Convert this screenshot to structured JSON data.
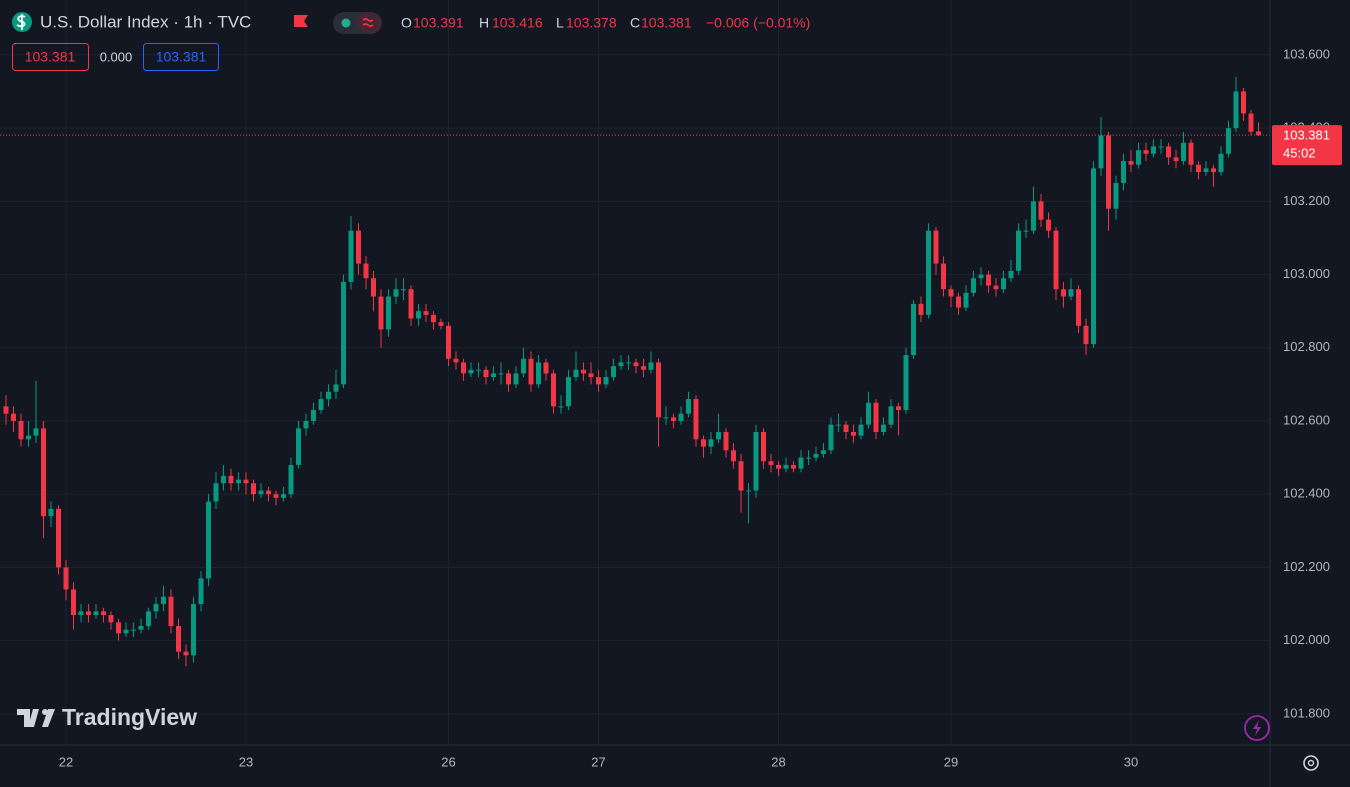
{
  "header": {
    "symbol": "U.S. Dollar Index · 1h · TVC",
    "ohlc": [
      {
        "label": "O",
        "value": "103.391"
      },
      {
        "label": "H",
        "value": "103.416"
      },
      {
        "label": "L",
        "value": "103.378"
      },
      {
        "label": "C",
        "value": "103.381"
      }
    ],
    "change": "−0.006 (−0.01%)",
    "boxes": [
      "103.381",
      "0.000",
      "103.381"
    ]
  },
  "chart_data": {
    "type": "candlestick",
    "up_color": "#089981",
    "down_color": "#f23645",
    "grid": true,
    "watermark": "TradingView",
    "last_price_label": "103.381",
    "countdown": "45:02",
    "ylim": [
      101.715,
      103.75
    ],
    "yticks": [
      {
        "value": 101.8,
        "label": "101.800"
      },
      {
        "value": 102.0,
        "label": "102.000"
      },
      {
        "value": 102.2,
        "label": "102.200"
      },
      {
        "value": 102.4,
        "label": "102.400"
      },
      {
        "value": 102.6,
        "label": "102.600"
      },
      {
        "value": 102.8,
        "label": "102.800"
      },
      {
        "value": 103.0,
        "label": "103.000"
      },
      {
        "value": 103.2,
        "label": "103.200"
      },
      {
        "value": 103.4,
        "label": "103.400"
      },
      {
        "value": 103.6,
        "label": "103.600"
      }
    ],
    "categories": [
      null,
      null,
      null,
      null,
      null,
      null,
      null,
      null,
      "22",
      null,
      null,
      null,
      null,
      null,
      null,
      null,
      null,
      null,
      null,
      null,
      null,
      null,
      null,
      null,
      null,
      null,
      null,
      null,
      null,
      null,
      null,
      null,
      "23",
      null,
      null,
      null,
      null,
      null,
      null,
      null,
      null,
      null,
      null,
      null,
      null,
      null,
      null,
      null,
      null,
      null,
      null,
      null,
      null,
      null,
      null,
      null,
      null,
      null,
      null,
      "26",
      null,
      null,
      null,
      null,
      null,
      null,
      null,
      null,
      null,
      null,
      null,
      null,
      null,
      null,
      null,
      null,
      null,
      null,
      null,
      "27",
      null,
      null,
      null,
      null,
      null,
      null,
      null,
      null,
      null,
      null,
      null,
      null,
      null,
      null,
      null,
      null,
      null,
      null,
      null,
      null,
      null,
      null,
      null,
      "28",
      null,
      null,
      null,
      null,
      null,
      null,
      null,
      null,
      null,
      null,
      null,
      null,
      null,
      null,
      null,
      null,
      null,
      null,
      null,
      null,
      null,
      null,
      "29",
      null,
      null,
      null,
      null,
      null,
      null,
      null,
      null,
      null,
      null,
      null,
      null,
      null,
      null,
      null,
      null,
      null,
      null,
      null,
      null,
      null,
      null,
      null,
      "30",
      null,
      null,
      null,
      null,
      null,
      null,
      null,
      null,
      null,
      null,
      null,
      null,
      null,
      null,
      null,
      null,
      null
    ],
    "candles": [
      [
        102.64,
        102.67,
        102.59,
        102.62
      ],
      [
        102.62,
        102.64,
        102.57,
        102.6
      ],
      [
        102.6,
        102.62,
        102.53,
        102.55
      ],
      [
        102.55,
        102.6,
        102.53,
        102.56
      ],
      [
        102.56,
        102.71,
        102.54,
        102.58
      ],
      [
        102.58,
        102.6,
        102.28,
        102.34
      ],
      [
        102.34,
        102.38,
        102.31,
        102.36
      ],
      [
        102.36,
        102.37,
        102.18,
        102.2
      ],
      [
        102.2,
        102.22,
        102.11,
        102.14
      ],
      [
        102.14,
        102.16,
        102.03,
        102.07
      ],
      [
        102.07,
        102.1,
        102.05,
        102.08
      ],
      [
        102.08,
        102.1,
        102.05,
        102.07
      ],
      [
        102.07,
        102.1,
        102.06,
        102.08
      ],
      [
        102.08,
        102.09,
        102.05,
        102.07
      ],
      [
        102.07,
        102.08,
        102.03,
        102.05
      ],
      [
        102.05,
        102.06,
        102.0,
        102.02
      ],
      [
        102.02,
        102.05,
        102.01,
        102.03
      ],
      [
        102.03,
        102.05,
        102.01,
        102.03
      ],
      [
        102.03,
        102.06,
        102.02,
        102.04
      ],
      [
        102.04,
        102.09,
        102.03,
        102.08
      ],
      [
        102.08,
        102.12,
        102.06,
        102.1
      ],
      [
        102.1,
        102.15,
        102.08,
        102.12
      ],
      [
        102.12,
        102.14,
        102.02,
        102.04
      ],
      [
        102.04,
        102.06,
        101.95,
        101.97
      ],
      [
        101.97,
        101.99,
        101.93,
        101.96
      ],
      [
        101.96,
        102.12,
        101.94,
        102.1
      ],
      [
        102.1,
        102.19,
        102.08,
        102.17
      ],
      [
        102.17,
        102.4,
        102.15,
        102.38
      ],
      [
        102.38,
        102.46,
        102.36,
        102.43
      ],
      [
        102.43,
        102.48,
        102.41,
        102.45
      ],
      [
        102.45,
        102.47,
        102.41,
        102.43
      ],
      [
        102.43,
        102.46,
        102.41,
        102.44
      ],
      [
        102.44,
        102.46,
        102.4,
        102.43
      ],
      [
        102.43,
        102.44,
        102.38,
        102.4
      ],
      [
        102.4,
        102.43,
        102.39,
        102.41
      ],
      [
        102.41,
        102.42,
        102.38,
        102.4
      ],
      [
        102.4,
        102.41,
        102.37,
        102.39
      ],
      [
        102.39,
        102.42,
        102.38,
        102.4
      ],
      [
        102.4,
        102.5,
        102.39,
        102.48
      ],
      [
        102.48,
        102.6,
        102.47,
        102.58
      ],
      [
        102.58,
        102.62,
        102.56,
        102.6
      ],
      [
        102.6,
        102.65,
        102.59,
        102.63
      ],
      [
        102.63,
        102.68,
        102.62,
        102.66
      ],
      [
        102.66,
        102.7,
        102.64,
        102.68
      ],
      [
        102.68,
        102.74,
        102.66,
        102.7
      ],
      [
        102.7,
        103.0,
        102.69,
        102.98
      ],
      [
        102.98,
        103.16,
        102.96,
        103.12
      ],
      [
        103.12,
        103.14,
        103.0,
        103.03
      ],
      [
        103.03,
        103.05,
        102.96,
        102.99
      ],
      [
        102.99,
        103.01,
        102.9,
        102.94
      ],
      [
        102.94,
        102.96,
        102.8,
        102.85
      ],
      [
        102.85,
        102.96,
        102.83,
        102.94
      ],
      [
        102.94,
        102.99,
        102.92,
        102.96
      ],
      [
        102.96,
        102.99,
        102.93,
        102.96
      ],
      [
        102.96,
        102.97,
        102.86,
        102.88
      ],
      [
        102.88,
        102.92,
        102.86,
        102.9
      ],
      [
        102.9,
        102.92,
        102.87,
        102.89
      ],
      [
        102.89,
        102.9,
        102.85,
        102.87
      ],
      [
        102.87,
        102.88,
        102.85,
        102.86
      ],
      [
        102.86,
        102.87,
        102.75,
        102.77
      ],
      [
        102.77,
        102.79,
        102.74,
        102.76
      ],
      [
        102.76,
        102.77,
        102.71,
        102.73
      ],
      [
        102.73,
        102.76,
        102.72,
        102.74
      ],
      [
        102.74,
        102.76,
        102.72,
        102.74
      ],
      [
        102.74,
        102.75,
        102.7,
        102.72
      ],
      [
        102.72,
        102.75,
        102.71,
        102.73
      ],
      [
        102.73,
        102.76,
        102.7,
        102.73
      ],
      [
        102.73,
        102.74,
        102.68,
        102.7
      ],
      [
        102.7,
        102.75,
        102.69,
        102.73
      ],
      [
        102.73,
        102.8,
        102.72,
        102.77
      ],
      [
        102.77,
        102.79,
        102.68,
        102.7
      ],
      [
        102.7,
        102.78,
        102.69,
        102.76
      ],
      [
        102.76,
        102.77,
        102.71,
        102.73
      ],
      [
        102.73,
        102.74,
        102.62,
        102.64
      ],
      [
        102.64,
        102.67,
        102.62,
        102.64
      ],
      [
        102.64,
        102.74,
        102.63,
        102.72
      ],
      [
        102.72,
        102.79,
        102.71,
        102.74
      ],
      [
        102.74,
        102.76,
        102.71,
        102.73
      ],
      [
        102.73,
        102.76,
        102.7,
        102.72
      ],
      [
        102.72,
        102.74,
        102.68,
        102.7
      ],
      [
        102.7,
        102.74,
        102.69,
        102.72
      ],
      [
        102.72,
        102.77,
        102.71,
        102.75
      ],
      [
        102.75,
        102.78,
        102.74,
        102.76
      ],
      [
        102.76,
        102.78,
        102.74,
        102.76
      ],
      [
        102.76,
        102.77,
        102.73,
        102.75
      ],
      [
        102.75,
        102.77,
        102.72,
        102.74
      ],
      [
        102.74,
        102.79,
        102.73,
        102.76
      ],
      [
        102.76,
        102.77,
        102.53,
        102.61
      ],
      [
        102.61,
        102.64,
        102.59,
        102.61
      ],
      [
        102.61,
        102.62,
        102.58,
        102.6
      ],
      [
        102.6,
        102.64,
        102.59,
        102.62
      ],
      [
        102.62,
        102.68,
        102.61,
        102.66
      ],
      [
        102.66,
        102.67,
        102.53,
        102.55
      ],
      [
        102.55,
        102.56,
        102.5,
        102.53
      ],
      [
        102.53,
        102.57,
        102.51,
        102.55
      ],
      [
        102.55,
        102.62,
        102.54,
        102.57
      ],
      [
        102.57,
        102.58,
        102.5,
        102.52
      ],
      [
        102.52,
        102.54,
        102.47,
        102.49
      ],
      [
        102.49,
        102.51,
        102.35,
        102.41
      ],
      [
        102.41,
        102.43,
        102.32,
        102.41
      ],
      [
        102.41,
        102.59,
        102.39,
        102.57
      ],
      [
        102.57,
        102.58,
        102.47,
        102.49
      ],
      [
        102.49,
        102.51,
        102.46,
        102.48
      ],
      [
        102.48,
        102.49,
        102.45,
        102.47
      ],
      [
        102.47,
        102.5,
        102.46,
        102.48
      ],
      [
        102.48,
        102.49,
        102.46,
        102.47
      ],
      [
        102.47,
        102.52,
        102.46,
        102.5
      ],
      [
        102.5,
        102.52,
        102.48,
        102.5
      ],
      [
        102.5,
        102.53,
        102.49,
        102.51
      ],
      [
        102.51,
        102.54,
        102.5,
        102.52
      ],
      [
        102.52,
        102.61,
        102.51,
        102.59
      ],
      [
        102.59,
        102.62,
        102.57,
        102.59
      ],
      [
        102.59,
        102.6,
        102.55,
        102.57
      ],
      [
        102.57,
        102.59,
        102.54,
        102.56
      ],
      [
        102.56,
        102.61,
        102.55,
        102.59
      ],
      [
        102.59,
        102.68,
        102.58,
        102.65
      ],
      [
        102.65,
        102.66,
        102.55,
        102.57
      ],
      [
        102.57,
        102.61,
        102.56,
        102.59
      ],
      [
        102.59,
        102.66,
        102.58,
        102.64
      ],
      [
        102.64,
        102.65,
        102.56,
        102.63
      ],
      [
        102.63,
        102.8,
        102.62,
        102.78
      ],
      [
        102.78,
        102.93,
        102.77,
        102.92
      ],
      [
        102.92,
        102.94,
        102.87,
        102.89
      ],
      [
        102.89,
        103.14,
        102.88,
        103.12
      ],
      [
        103.12,
        103.13,
        103.0,
        103.03
      ],
      [
        103.03,
        103.05,
        102.94,
        102.96
      ],
      [
        102.96,
        102.97,
        102.91,
        102.94
      ],
      [
        102.94,
        102.95,
        102.89,
        102.91
      ],
      [
        102.91,
        102.97,
        102.9,
        102.95
      ],
      [
        102.95,
        103.01,
        102.94,
        102.99
      ],
      [
        102.99,
        103.02,
        102.97,
        103.0
      ],
      [
        103.0,
        103.01,
        102.95,
        102.97
      ],
      [
        102.97,
        102.99,
        102.94,
        102.96
      ],
      [
        102.96,
        103.01,
        102.95,
        102.99
      ],
      [
        102.99,
        103.04,
        102.98,
        103.01
      ],
      [
        103.01,
        103.14,
        103.0,
        103.12
      ],
      [
        103.12,
        103.15,
        103.1,
        103.12
      ],
      [
        103.12,
        103.24,
        103.11,
        103.2
      ],
      [
        103.2,
        103.22,
        103.13,
        103.15
      ],
      [
        103.15,
        103.17,
        103.1,
        103.12
      ],
      [
        103.12,
        103.13,
        102.93,
        102.96
      ],
      [
        102.96,
        102.98,
        102.91,
        102.94
      ],
      [
        102.94,
        102.99,
        102.93,
        102.96
      ],
      [
        102.96,
        102.97,
        102.84,
        102.86
      ],
      [
        102.86,
        102.88,
        102.78,
        102.81
      ],
      [
        102.81,
        103.31,
        102.8,
        103.29
      ],
      [
        103.29,
        103.43,
        103.27,
        103.38
      ],
      [
        103.38,
        103.39,
        103.12,
        103.18
      ],
      [
        103.18,
        103.27,
        103.15,
        103.25
      ],
      [
        103.25,
        103.33,
        103.23,
        103.31
      ],
      [
        103.31,
        103.34,
        103.28,
        103.3
      ],
      [
        103.3,
        103.36,
        103.29,
        103.34
      ],
      [
        103.34,
        103.36,
        103.31,
        103.33
      ],
      [
        103.33,
        103.37,
        103.32,
        103.35
      ],
      [
        103.35,
        103.37,
        103.33,
        103.35
      ],
      [
        103.35,
        103.36,
        103.3,
        103.32
      ],
      [
        103.32,
        103.34,
        103.29,
        103.31
      ],
      [
        103.31,
        103.39,
        103.3,
        103.36
      ],
      [
        103.36,
        103.37,
        103.28,
        103.3
      ],
      [
        103.3,
        103.31,
        103.26,
        103.28
      ],
      [
        103.28,
        103.31,
        103.27,
        103.29
      ],
      [
        103.29,
        103.3,
        103.24,
        103.28
      ],
      [
        103.28,
        103.35,
        103.27,
        103.33
      ],
      [
        103.33,
        103.42,
        103.32,
        103.4
      ],
      [
        103.4,
        103.54,
        103.39,
        103.5
      ],
      [
        103.5,
        103.51,
        103.42,
        103.44
      ],
      [
        103.44,
        103.45,
        103.38,
        103.39
      ],
      [
        103.391,
        103.416,
        103.378,
        103.381
      ]
    ]
  }
}
